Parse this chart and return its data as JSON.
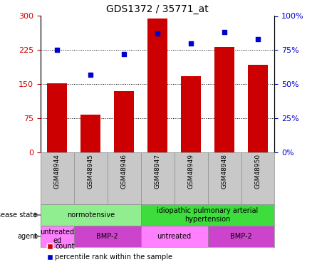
{
  "title": "GDS1372 / 35771_at",
  "samples": [
    "GSM48944",
    "GSM48945",
    "GSM48946",
    "GSM48947",
    "GSM48949",
    "GSM48948",
    "GSM48950"
  ],
  "count_values": [
    152,
    82,
    135,
    295,
    168,
    232,
    192
  ],
  "percentile_values": [
    75,
    57,
    72,
    87,
    80,
    88,
    83
  ],
  "bar_color": "#cc0000",
  "dot_color": "#0000cc",
  "ylim_left": [
    0,
    300
  ],
  "ylim_right": [
    0,
    100
  ],
  "yticks_left": [
    0,
    75,
    150,
    225,
    300
  ],
  "yticks_right": [
    0,
    25,
    50,
    75,
    100
  ],
  "disease_state_groups": [
    {
      "label": "normotensive",
      "start": 0,
      "end": 3,
      "color": "#90ee90"
    },
    {
      "label": "idiopathic pulmonary arterial\nhypertension",
      "start": 3,
      "end": 7,
      "color": "#3ddd3d"
    }
  ],
  "agent_groups": [
    {
      "label": "untreated\ned",
      "start": 0,
      "end": 1,
      "color": "#ff80ff"
    },
    {
      "label": "BMP-2",
      "start": 1,
      "end": 3,
      "color": "#cc44cc"
    },
    {
      "label": "untreated",
      "start": 3,
      "end": 5,
      "color": "#ff80ff"
    },
    {
      "label": "BMP-2",
      "start": 5,
      "end": 7,
      "color": "#cc44cc"
    }
  ],
  "tick_color_left": "#cc0000",
  "tick_color_right": "#0000cc",
  "bg_xtick": "#c8c8c8",
  "label_disease": "disease state",
  "label_agent": "agent"
}
